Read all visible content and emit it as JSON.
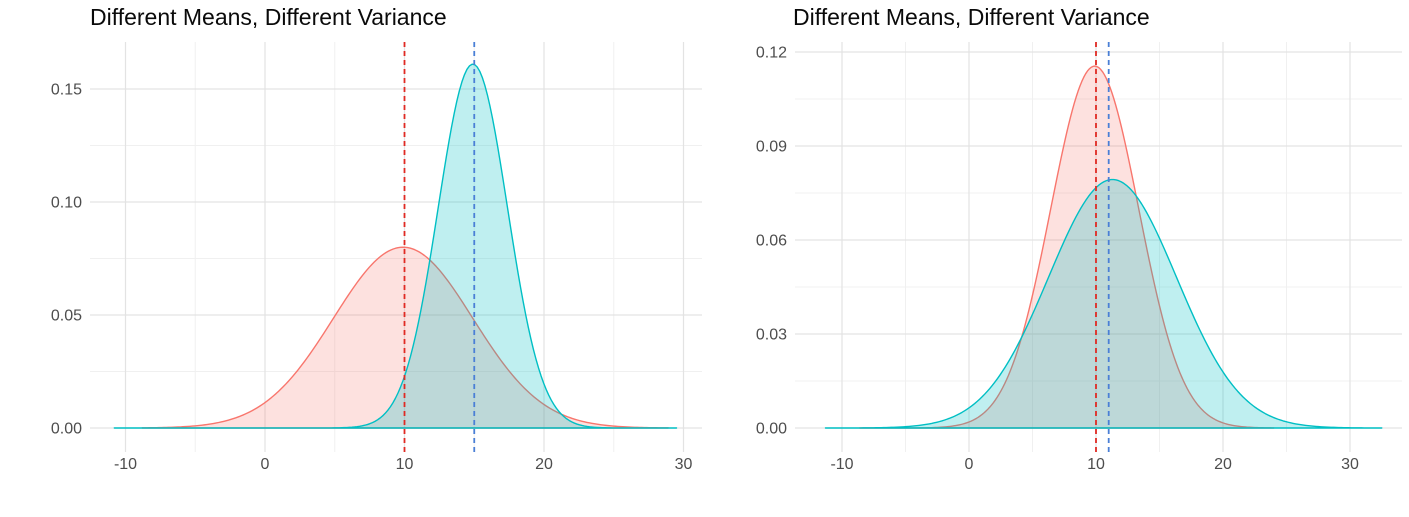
{
  "page": {
    "background": "#ffffff",
    "description_left_title": "Different Means, Different Variance",
    "description_right_title": "Different Means, Different Variance"
  },
  "chart_data": [
    {
      "type": "area",
      "subtype": "density",
      "title": "Different Means, Different Variance",
      "xlabel": "",
      "ylabel": "",
      "x_ticks": [
        -10,
        0,
        10,
        20,
        30
      ],
      "x_tick_labels": [
        "-10",
        "0",
        "10",
        "20",
        "30"
      ],
      "y_ticks": [
        0.0,
        0.05,
        0.1,
        0.15
      ],
      "y_tick_labels": [
        "0.00",
        "0.05",
        "0.10",
        "0.15"
      ],
      "xlim": [
        -12.5,
        31.3
      ],
      "ylim": [
        0,
        0.17
      ],
      "grid": true,
      "legend": "none",
      "series": [
        {
          "name": "red-density",
          "mean": 9.9,
          "sd": 5.0,
          "peak_density": 0.08,
          "x_range": [
            -8.8,
            28.9
          ],
          "line_color": "#F8766D",
          "fill_color": "rgba(248,118,109,0.22)"
        },
        {
          "name": "teal-density",
          "mean": 14.9,
          "sd": 2.48,
          "peak_density": 0.161,
          "x_range": [
            -10.8,
            29.5
          ],
          "line_color": "#00BFC4",
          "fill_color": "rgba(0,191,196,0.25)"
        }
      ],
      "vlines": [
        {
          "name": "red-mean-line",
          "x": 10,
          "color": "#E02A23",
          "style": "dashed"
        },
        {
          "name": "blue-mean-line",
          "x": 15,
          "color": "#4A7FD6",
          "style": "dashed"
        }
      ]
    },
    {
      "type": "area",
      "subtype": "density",
      "title": "Different Means, Different Variance",
      "xlabel": "",
      "ylabel": "",
      "x_ticks": [
        -10,
        0,
        10,
        20,
        30
      ],
      "x_tick_labels": [
        "-10",
        "0",
        "10",
        "20",
        "30"
      ],
      "y_ticks": [
        0.0,
        0.03,
        0.06,
        0.09,
        0.12
      ],
      "y_tick_labels": [
        "0.00",
        "0.03",
        "0.06",
        "0.09",
        "0.12"
      ],
      "xlim": [
        -13.7,
        34.1
      ],
      "ylim": [
        0,
        0.123
      ],
      "grid": true,
      "legend": "none",
      "series": [
        {
          "name": "red-density",
          "mean": 9.9,
          "sd": 3.46,
          "peak_density": 0.1155,
          "x_range": [
            -8.6,
            24.0
          ],
          "line_color": "#F8766D",
          "fill_color": "rgba(248,118,109,0.22)"
        },
        {
          "name": "teal-density",
          "mean": 11.3,
          "sd": 5.04,
          "peak_density": 0.0793,
          "x_range": [
            -11.3,
            32.5
          ],
          "line_color": "#00BFC4",
          "fill_color": "rgba(0,191,196,0.25)"
        }
      ],
      "vlines": [
        {
          "name": "red-mean-line",
          "x": 10,
          "color": "#E02A23",
          "style": "dashed"
        },
        {
          "name": "blue-mean-line",
          "x": 11,
          "color": "#4A7FD6",
          "style": "dashed"
        }
      ]
    }
  ],
  "style_colors": {
    "grid_major": "#e3e3e3",
    "grid_minor": "#f0f0f0",
    "tick_label": "#4d4d4d",
    "title": "#0a0a0a"
  }
}
